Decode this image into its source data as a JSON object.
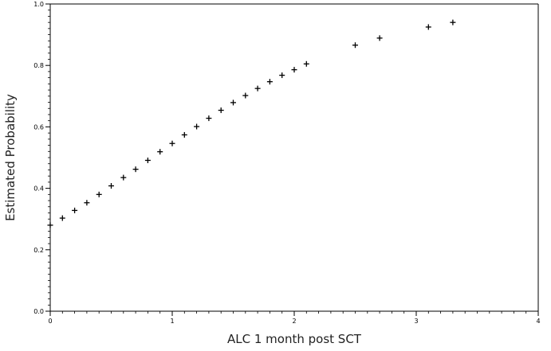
{
  "chart_data": {
    "type": "scatter",
    "title": "",
    "xlabel": "ALC 1 month post SCT",
    "ylabel": "Estimated Probability",
    "xlim": [
      0,
      4
    ],
    "ylim": [
      0,
      1
    ],
    "x_ticks": [
      0,
      1,
      2,
      3,
      4
    ],
    "y_ticks": [
      0.0,
      0.2,
      0.4,
      0.6,
      0.8,
      1.0
    ],
    "x_tick_labels": [
      "0",
      "1",
      "2",
      "3",
      "4"
    ],
    "y_tick_labels": [
      "0.0",
      "0.2",
      "0.4",
      "0.6",
      "0.8",
      "1.0"
    ],
    "grid": false,
    "legend": "none",
    "marker": "plus",
    "marker_color": "#000000",
    "series": [
      {
        "x": [
          0.0,
          0.1,
          0.2,
          0.3,
          0.4,
          0.5,
          0.6,
          0.7,
          0.8,
          0.9,
          1.0,
          1.1,
          1.2,
          1.3,
          1.4,
          1.5,
          1.6,
          1.7,
          1.8,
          1.9,
          2.0,
          2.1,
          2.5,
          2.7,
          3.1,
          3.3
        ],
        "y": [
          0.28,
          0.303,
          0.328,
          0.353,
          0.38,
          0.408,
          0.435,
          0.462,
          0.491,
          0.519,
          0.546,
          0.574,
          0.601,
          0.628,
          0.654,
          0.679,
          0.702,
          0.725,
          0.747,
          0.768,
          0.786,
          0.805,
          0.866,
          0.889,
          0.925,
          0.94
        ]
      }
    ]
  }
}
